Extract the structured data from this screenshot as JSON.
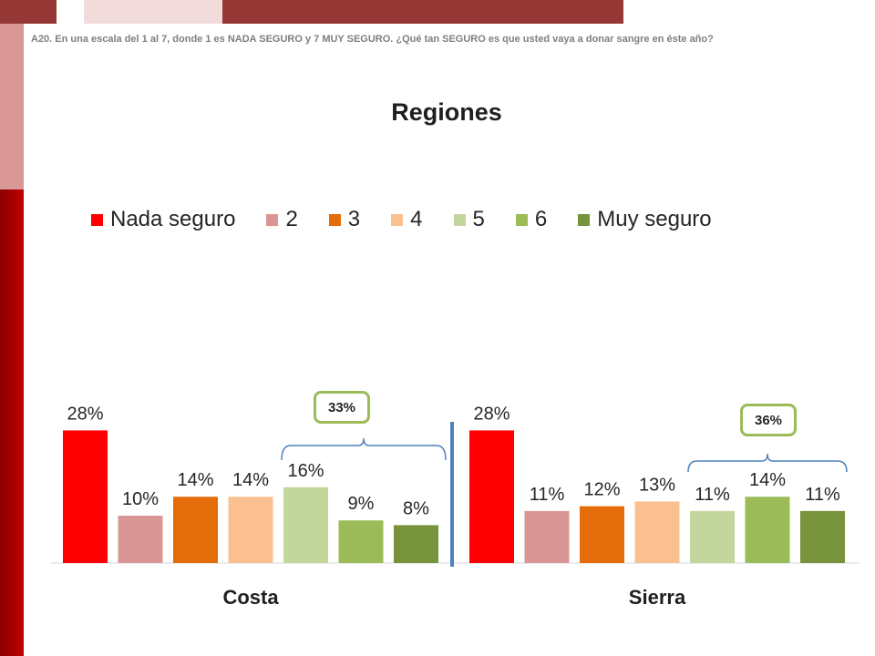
{
  "header": {
    "question": "A20. En una escala del 1 al 7, donde 1 es NADA SEGURO y 7 MUY SEGURO. ¿Qué tan SEGURO es que usted vaya a donar sangre en éste año?"
  },
  "colors": {
    "nada_seguro": "#ff0000",
    "level_2": "#da9694",
    "level_3": "#e46c0a",
    "level_4": "#fac090",
    "level_5": "#c3d69b",
    "level_6": "#9bbb59",
    "muy_seguro": "#77933c",
    "callout_border": "#9bbb59",
    "bracket": "#4f81bd",
    "divider": "#4f81bd",
    "deco_dark_red": "#953735",
    "deco_light_pink": "#f2dcdb",
    "deco_side_red": "#c00000"
  },
  "chart_data": {
    "type": "bar",
    "title": "Regiones",
    "categories": [
      "Costa",
      "Sierra"
    ],
    "series": [
      {
        "name": "Nada seguro",
        "values": [
          28,
          28
        ],
        "labels": [
          "28%",
          "28%"
        ]
      },
      {
        "name": "2",
        "values": [
          10,
          11
        ],
        "labels": [
          "10%",
          "11%"
        ]
      },
      {
        "name": "3",
        "values": [
          14,
          12
        ],
        "labels": [
          "14%",
          "12%"
        ]
      },
      {
        "name": "4",
        "values": [
          14,
          13
        ],
        "labels": [
          "14%",
          "13%"
        ]
      },
      {
        "name": "5",
        "values": [
          16,
          11
        ],
        "labels": [
          "16%",
          "11%"
        ]
      },
      {
        "name": "6",
        "values": [
          9,
          14
        ],
        "labels": [
          "9%",
          "14%"
        ]
      },
      {
        "name": "Muy seguro",
        "values": [
          8,
          11
        ],
        "labels": [
          "8%",
          "11%"
        ]
      }
    ],
    "legend": "top",
    "grid": false,
    "annotations": [
      {
        "group": "Costa",
        "text": "33%",
        "covers_series": [
          "5",
          "6",
          "Muy seguro"
        ]
      },
      {
        "group": "Sierra",
        "text": "36%",
        "covers_series": [
          "5",
          "6",
          "Muy seguro"
        ]
      }
    ]
  }
}
